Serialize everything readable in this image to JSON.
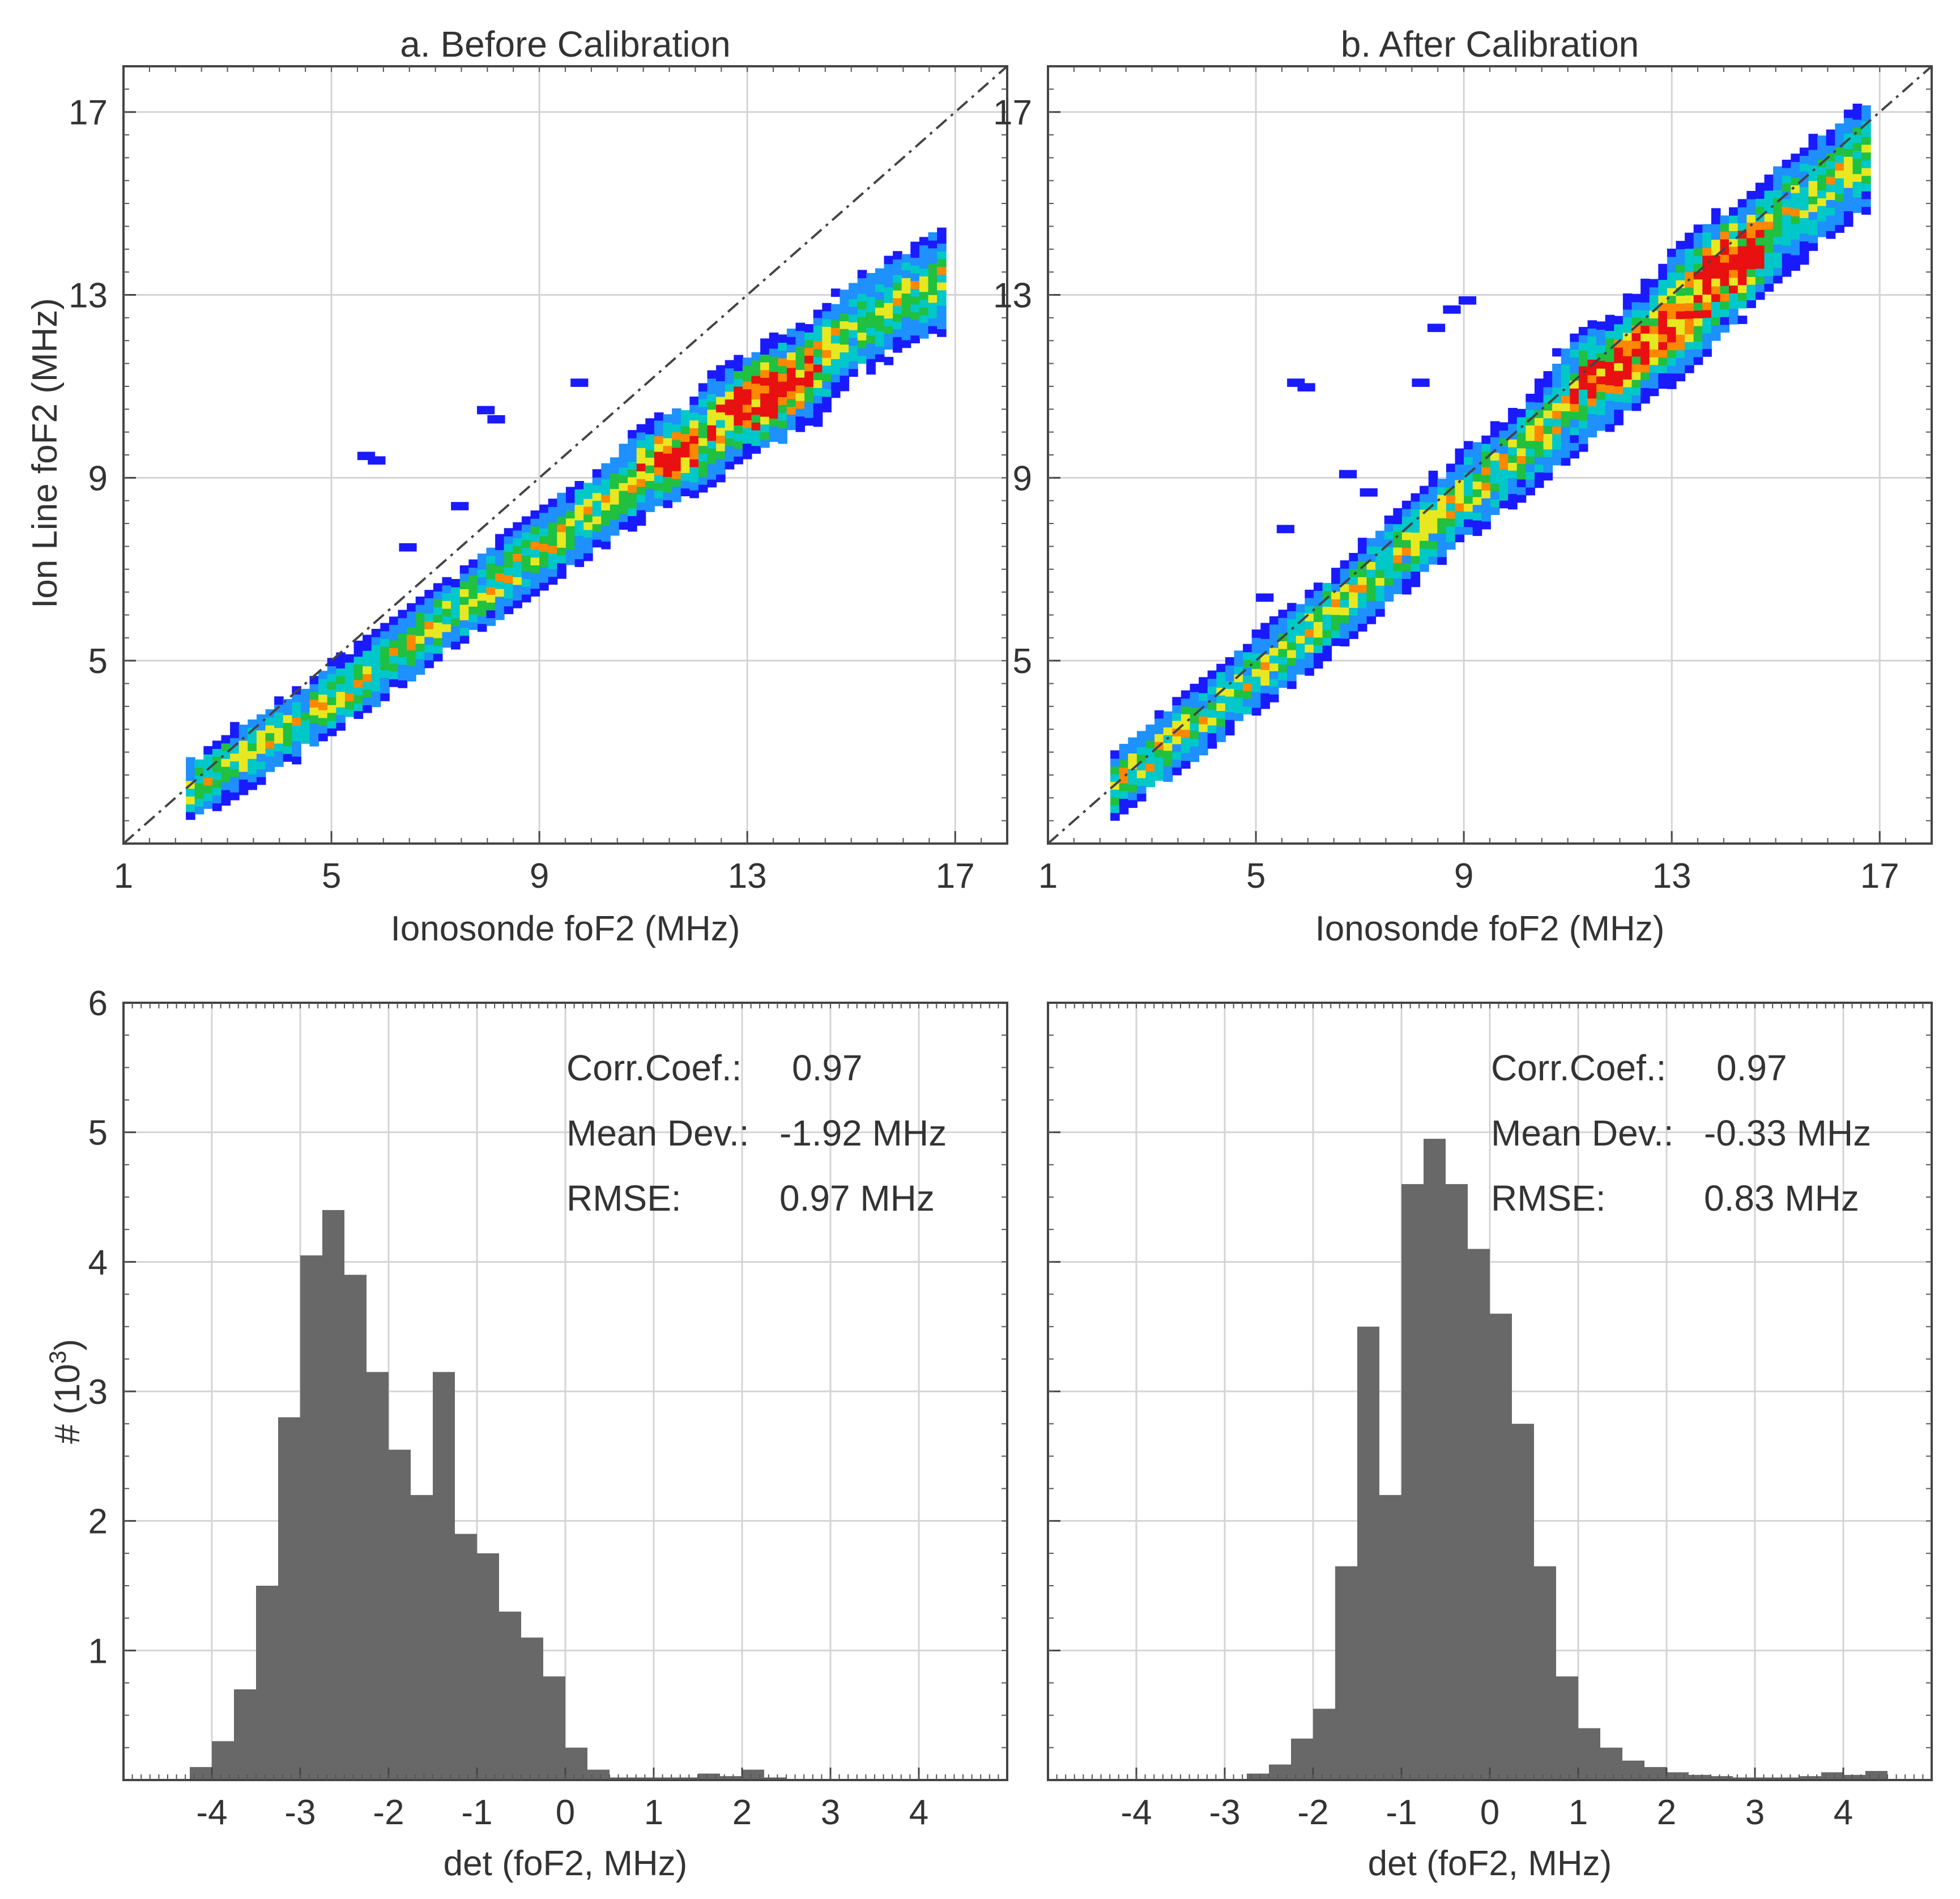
{
  "chart_data": [
    {
      "id": "scatter_before",
      "type": "heatmap",
      "title": "a. Before Calibration",
      "xlabel": "Ionosonde foF2 (MHz)",
      "ylabel": "Ion Line foF2 (MHz)",
      "xlim": [
        1,
        18
      ],
      "ylim": [
        1,
        18
      ],
      "xticks": [
        "1",
        "5",
        "9",
        "13",
        "17"
      ],
      "yticks": [
        "5",
        "9",
        "13",
        "17"
      ],
      "colormap": [
        "#1a1aff",
        "#1e90ff",
        "#00c8c8",
        "#20c040",
        "#e8e820",
        "#ff8800",
        "#e81010"
      ],
      "reference_line": {
        "style": "dash-dot",
        "slope": 1,
        "intercept": 0
      },
      "ridge": [
        [
          2.2,
          2.1
        ],
        [
          3,
          2.7
        ],
        [
          4,
          3.4
        ],
        [
          5,
          4.1
        ],
        [
          6,
          4.9
        ],
        [
          7,
          5.8
        ],
        [
          8,
          6.6
        ],
        [
          9,
          7.4
        ],
        [
          10,
          8.2
        ],
        [
          11,
          9.0
        ],
        [
          12,
          9.8
        ],
        [
          13,
          10.5
        ],
        [
          14,
          11.3
        ],
        [
          15,
          12.2
        ],
        [
          16.7,
          13.3
        ]
      ],
      "spread": 0.45,
      "hotspots": [
        [
          11.5,
          9.4
        ],
        [
          13.0,
          10.5
        ],
        [
          13.6,
          10.9
        ]
      ],
      "outliers": [
        [
          5.5,
          9.4
        ],
        [
          5.7,
          9.3
        ],
        [
          7.8,
          10.4
        ],
        [
          8.0,
          10.2
        ],
        [
          6.3,
          7.4
        ],
        [
          9.6,
          11.0
        ],
        [
          7.3,
          8.3
        ]
      ],
      "seed": 11
    },
    {
      "id": "scatter_after",
      "type": "heatmap",
      "title": "b. After Calibration",
      "xlabel": "Ionosonde foF2 (MHz)",
      "ylabel": "",
      "xlim": [
        1,
        18
      ],
      "ylim": [
        1,
        18
      ],
      "xticks": [
        "1",
        "5",
        "9",
        "13",
        "17"
      ],
      "yticks": [
        "5",
        "9",
        "13",
        "17"
      ],
      "colormap": [
        "#1a1aff",
        "#1e90ff",
        "#00c8c8",
        "#20c040",
        "#e8e820",
        "#ff8800",
        "#e81010"
      ],
      "reference_line": {
        "style": "dash-dot",
        "slope": 1,
        "intercept": 0
      },
      "ridge": [
        [
          2.2,
          2.2
        ],
        [
          3,
          2.9
        ],
        [
          4,
          3.8
        ],
        [
          5,
          4.7
        ],
        [
          6,
          5.6
        ],
        [
          7,
          6.6
        ],
        [
          8,
          7.6
        ],
        [
          9,
          8.6
        ],
        [
          10,
          9.5
        ],
        [
          11,
          10.5
        ],
        [
          12,
          11.4
        ],
        [
          13,
          12.4
        ],
        [
          14,
          13.5
        ],
        [
          15,
          14.6
        ],
        [
          16.7,
          16.0
        ]
      ],
      "spread": 0.5,
      "hotspots": [
        [
          11.6,
          11.3
        ],
        [
          12.8,
          12.1
        ],
        [
          13.6,
          13.2
        ],
        [
          14.2,
          13.8
        ]
      ],
      "outliers": [
        [
          5.6,
          11.0
        ],
        [
          5.8,
          10.9
        ],
        [
          8.0,
          11.0
        ],
        [
          8.3,
          12.2
        ],
        [
          8.6,
          12.6
        ],
        [
          8.9,
          12.8
        ],
        [
          5.0,
          6.3
        ],
        [
          5.4,
          7.8
        ],
        [
          6.6,
          9.0
        ],
        [
          7.0,
          8.6
        ]
      ],
      "seed": 23
    },
    {
      "id": "hist_before",
      "type": "bar",
      "title": "",
      "xlabel": "det (foF2, MHz)",
      "ylabel": "# (10^3)",
      "ylabel_base": "# (10",
      "ylabel_exp": "3",
      "ylabel_close": ")",
      "xlim": [
        -5,
        5
      ],
      "ylim": [
        0,
        6
      ],
      "xticks": [
        "-4",
        "-3",
        "-2",
        "-1",
        "0",
        "1",
        "2",
        "3",
        "4"
      ],
      "yticks": [
        "1",
        "2",
        "3",
        "4",
        "5",
        "6"
      ],
      "bin_start": -4.25,
      "bin_width": 0.25,
      "values": [
        0.1,
        0.3,
        0.7,
        1.5,
        2.8,
        4.05,
        4.4,
        3.9,
        3.15,
        2.55,
        2.2,
        3.15,
        1.9,
        1.75,
        1.3,
        1.1,
        0.8,
        0.25,
        0.08,
        0.02,
        0.02,
        0.02,
        0.02,
        0.05,
        0.03,
        0.08,
        0.02
      ],
      "bar_color": "#686868",
      "stats": {
        "corr_label": "Corr.Coef.:",
        "corr_value": "0.97",
        "mean_label": "Mean Dev.:",
        "mean_value": "-1.92 MHz",
        "rmse_label": "RMSE:",
        "rmse_value": "0.97 MHz"
      }
    },
    {
      "id": "hist_after",
      "type": "bar",
      "title": "",
      "xlabel": "det (foF2, MHz)",
      "ylabel": "",
      "xlim": [
        -5,
        5
      ],
      "ylim": [
        0,
        6
      ],
      "xticks": [
        "-4",
        "-3",
        "-2",
        "-1",
        "0",
        "1",
        "2",
        "3",
        "4"
      ],
      "yticks": [],
      "bin_start": -2.75,
      "bin_width": 0.25,
      "values": [
        0.05,
        0.12,
        0.32,
        0.55,
        1.65,
        3.5,
        2.2,
        4.6,
        4.95,
        4.6,
        4.1,
        3.6,
        2.75,
        1.65,
        0.8,
        0.4,
        0.25,
        0.15,
        0.1,
        0.06,
        0.04,
        0.03,
        0.02,
        0.02,
        0.02,
        0.03,
        0.06,
        0.04,
        0.07
      ],
      "bar_color": "#686868",
      "stats": {
        "corr_label": "Corr.Coef.:",
        "corr_value": "0.97",
        "mean_label": "Mean Dev.:",
        "mean_value": "-0.33 MHz",
        "rmse_label": "RMSE:",
        "rmse_value": "0.83 MHz"
      }
    }
  ]
}
